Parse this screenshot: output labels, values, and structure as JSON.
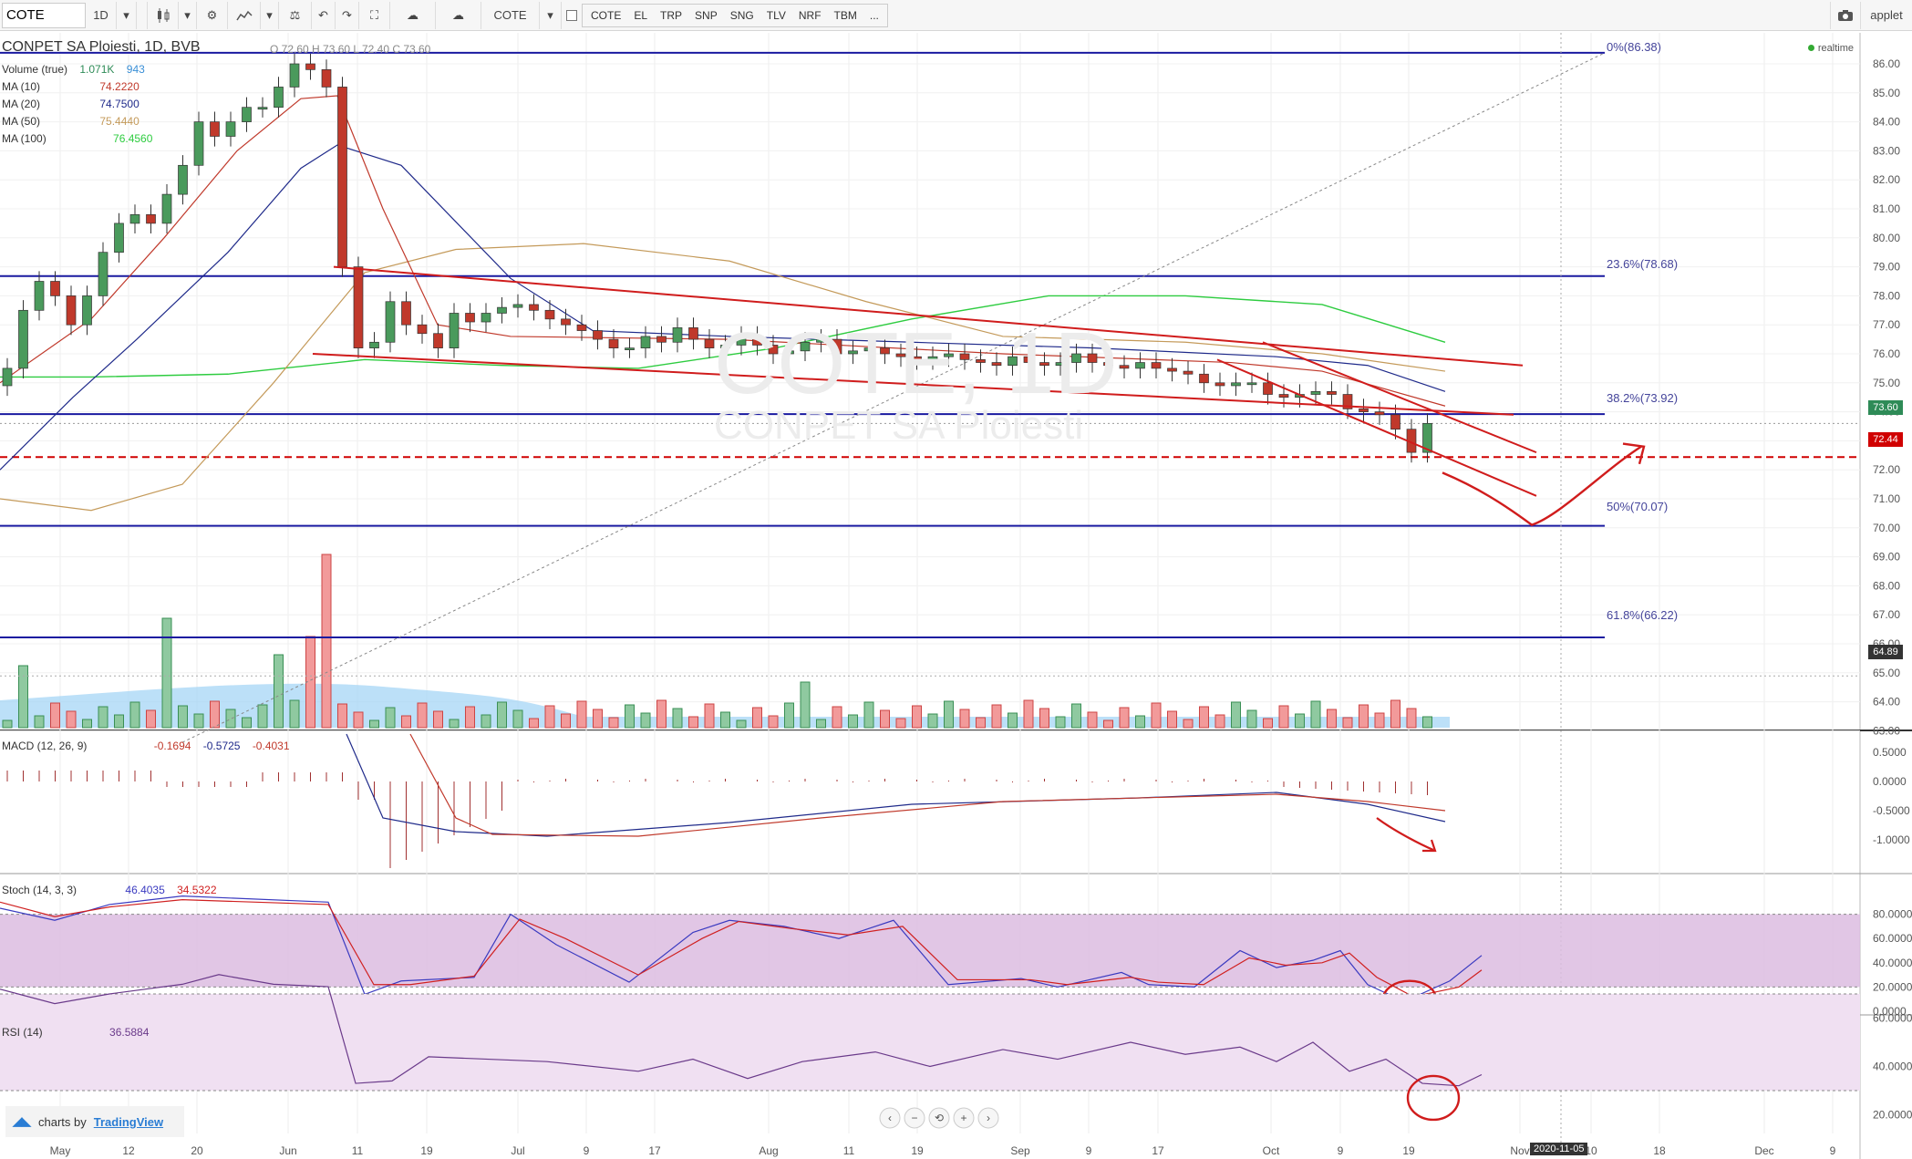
{
  "toolbar": {
    "symbol": "COTE",
    "interval": "1D",
    "compare_symbol": "COTE",
    "quick_symbols": [
      "COTE",
      "EL",
      "TRP",
      "SNP",
      "SNG",
      "TLV",
      "NRF",
      "TBM",
      "..."
    ],
    "applet_label": "applet"
  },
  "chart": {
    "title": "CONPET SA Ploiesti, 1D, BVB",
    "ohlc_text": "O 72.60  H 73.60  L 72.40  C 73.60",
    "realtime_label": "realtime",
    "watermark_symbol": "COTE, 1D",
    "watermark_name": "CONPET SA Ploiesti",
    "legend": [
      {
        "name": "Volume (true)",
        "v1": "1.071K",
        "v2": "943",
        "color": "#2e8b57"
      },
      {
        "name": "MA (10)",
        "v1": "74.2220",
        "color": "#c0392b"
      },
      {
        "name": "MA (20)",
        "v1": "74.7500",
        "color": "#1f2a8a"
      },
      {
        "name": "MA (50)",
        "v1": "75.4440",
        "color": "#c49a5a"
      },
      {
        "name": "MA (100)",
        "v1": "76.4560",
        "color": "#2ecc40"
      }
    ],
    "fib_levels": [
      {
        "label": "0%(86.38)",
        "price": 86.38
      },
      {
        "label": "23.6%(78.68)",
        "price": 78.68
      },
      {
        "label": "38.2%(73.92)",
        "price": 73.92
      },
      {
        "label": "50%(70.07)",
        "price": 70.07
      },
      {
        "label": "61.8%(66.22)",
        "price": 66.22
      }
    ],
    "price_tags": [
      {
        "label": "73.60",
        "price": 73.6,
        "color": "#2e8b57"
      },
      {
        "label": "72.44",
        "price": 72.44,
        "color": "#d00000"
      },
      {
        "label": "64.89",
        "price": 64.89,
        "color": "#333333"
      }
    ],
    "price_axis": [
      "86.00",
      "85.00",
      "84.00",
      "83.00",
      "82.00",
      "81.00",
      "80.00",
      "79.00",
      "78.00",
      "77.00",
      "76.00",
      "75.00",
      "74.00",
      "73.00",
      "72.00",
      "71.00",
      "70.00",
      "69.00",
      "68.00",
      "67.00",
      "66.00",
      "65.00",
      "64.00",
      "63.00"
    ],
    "macd_legend": {
      "name": "MACD (12, 26, 9)",
      "v1": "-0.1694",
      "v2": "-0.5725",
      "v3": "-0.4031"
    },
    "macd_axis": [
      "0.5000",
      "0.0000",
      "-0.5000",
      "-1.0000"
    ],
    "stoch_legend": {
      "name": "Stoch (14, 3, 3)",
      "v1": "46.4035",
      "v2": "34.5322"
    },
    "stoch_axis": [
      "80.0000",
      "60.0000",
      "40.0000",
      "20.0000",
      "0.0000"
    ],
    "rsi_legend": {
      "name": "RSI (14)",
      "v1": "36.5884"
    },
    "rsi_axis": [
      "60.0000",
      "40.0000",
      "20.0000"
    ],
    "time_axis": [
      "May",
      "12",
      "20",
      "Jun",
      "11",
      "19",
      "Jul",
      "9",
      "17",
      "Aug",
      "11",
      "19",
      "Sep",
      "9",
      "17",
      "Oct",
      "9",
      "19",
      "Nov",
      "10",
      "18",
      "Dec",
      "9"
    ],
    "crosshair_date": "2020-11-05",
    "credit_prefix": "charts by",
    "credit_brand": "TradingView"
  },
  "chart_data": {
    "type": "candlestick",
    "title": "CONPET SA Ploiesti, 1D, BVB",
    "last_close": 73.6,
    "ma_values": {
      "MA10": 74.222,
      "MA20": 74.75,
      "MA50": 75.444,
      "MA100": 76.456
    },
    "closes_approx": [
      75.5,
      77.5,
      78.5,
      78.0,
      77.0,
      78.0,
      79.5,
      80.5,
      80.8,
      80.5,
      81.5,
      82.5,
      84.0,
      83.5,
      84.0,
      84.5,
      84.5,
      85.2,
      86.0,
      85.8,
      85.2,
      79.0,
      76.2,
      76.4,
      77.8,
      77.0,
      76.7,
      76.2,
      77.4,
      77.1,
      77.4,
      77.6,
      77.7,
      77.5,
      77.2,
      77.0,
      76.8,
      76.5,
      76.2,
      76.2,
      76.6,
      76.4,
      76.9,
      76.5,
      76.2,
      76.3,
      76.6,
      76.3,
      76.0,
      76.1,
      76.4,
      76.5,
      76.0,
      76.1,
      76.2,
      76.0,
      75.9,
      75.8,
      75.9,
      76.0,
      75.8,
      75.7,
      75.6,
      75.9,
      75.7,
      75.6,
      75.7,
      76.0,
      75.7,
      75.6,
      75.5,
      75.7,
      75.5,
      75.4,
      75.3,
      75.0,
      74.9,
      75.0,
      75.0,
      74.6,
      74.5,
      74.6,
      74.7,
      74.6,
      74.1,
      74.0,
      73.9,
      73.4,
      72.6,
      73.6
    ],
    "rsi_last": 36.5884,
    "stoch_last": [
      46.4035,
      34.5322
    ],
    "macd_last": [
      -0.1694,
      -0.5725,
      -0.4031
    ]
  }
}
